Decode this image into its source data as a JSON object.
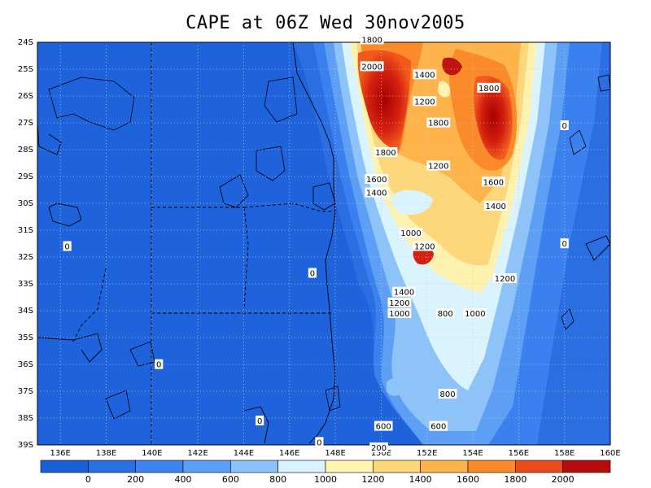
{
  "chart_data": {
    "type": "heatmap",
    "title": "CAPE at 06Z Wed 30nov2005",
    "x_ticks": [
      "136E",
      "138E",
      "140E",
      "142E",
      "144E",
      "146E",
      "148E",
      "150E",
      "152E",
      "154E",
      "156E",
      "158E",
      "160E"
    ],
    "y_ticks": [
      "24S",
      "25S",
      "26S",
      "27S",
      "28S",
      "29S",
      "30S",
      "31S",
      "32S",
      "33S",
      "34S",
      "35S",
      "36S",
      "37S",
      "38S",
      "39S"
    ],
    "xlim": [
      135,
      160
    ],
    "ylim": [
      -39,
      -24
    ],
    "colorbar": {
      "labels": [
        "0",
        "200",
        "400",
        "600",
        "800",
        "1000",
        "1200",
        "1400",
        "1600",
        "1800",
        "2000"
      ],
      "colors": [
        "#1a5fd6",
        "#2b6fe3",
        "#3d82ef",
        "#5c9ff6",
        "#8cc2fa",
        "#d8f3ff",
        "#fff4b0",
        "#fed878",
        "#feb44a",
        "#fa8a2a",
        "#ec4a1c",
        "#b70c0c"
      ]
    },
    "grid": true,
    "contour_labels": [
      {
        "text": "1800",
        "lon": 149.6,
        "lat": -24.8
      },
      {
        "text": "2000",
        "lon": 149.6,
        "lat": -25.8
      },
      {
        "text": "1400",
        "lon": 151.9,
        "lat": -26.1
      },
      {
        "text": "1800",
        "lon": 154.7,
        "lat": -26.6
      },
      {
        "text": "1200",
        "lon": 151.9,
        "lat": -27.1
      },
      {
        "text": "1800",
        "lon": 152.5,
        "lat": -27.9
      },
      {
        "text": "0",
        "lon": 158.0,
        "lat": -28.0
      },
      {
        "text": "1800",
        "lon": 150.2,
        "lat": -29.0
      },
      {
        "text": "1200",
        "lon": 152.5,
        "lat": -29.5
      },
      {
        "text": "1600",
        "lon": 149.8,
        "lat": -30.0
      },
      {
        "text": "1600",
        "lon": 154.9,
        "lat": -30.1
      },
      {
        "text": "1400",
        "lon": 149.8,
        "lat": -30.5
      },
      {
        "text": "1400",
        "lon": 155.0,
        "lat": -31.0
      },
      {
        "text": "1000",
        "lon": 151.3,
        "lat": -32.0
      },
      {
        "text": "0",
        "lon": 136.3,
        "lat": -32.5
      },
      {
        "text": "1200",
        "lon": 151.9,
        "lat": -32.5
      },
      {
        "text": "0",
        "lon": 158.0,
        "lat": -32.4
      },
      {
        "text": "0",
        "lon": 147.0,
        "lat": -33.5
      },
      {
        "text": "1200",
        "lon": 155.4,
        "lat": -33.7
      },
      {
        "text": "1400",
        "lon": 151.0,
        "lat": -34.2
      },
      {
        "text": "1200",
        "lon": 150.8,
        "lat": -34.6
      },
      {
        "text": "1000",
        "lon": 150.8,
        "lat": -35.0
      },
      {
        "text": "800",
        "lon": 152.8,
        "lat": -35.0
      },
      {
        "text": "1000",
        "lon": 154.1,
        "lat": -35.0
      },
      {
        "text": "0",
        "lon": 140.3,
        "lat": -36.9
      },
      {
        "text": "800",
        "lon": 152.9,
        "lat": -38.0
      },
      {
        "text": "0",
        "lon": 144.7,
        "lat": -39.0
      },
      {
        "text": "600",
        "lon": 150.1,
        "lat": -39.2
      },
      {
        "text": "600",
        "lon": 152.5,
        "lat": -39.2
      },
      {
        "text": "0",
        "lon": 147.3,
        "lat": -39.8
      },
      {
        "text": "200",
        "lon": 149.9,
        "lat": -40.0
      }
    ]
  }
}
